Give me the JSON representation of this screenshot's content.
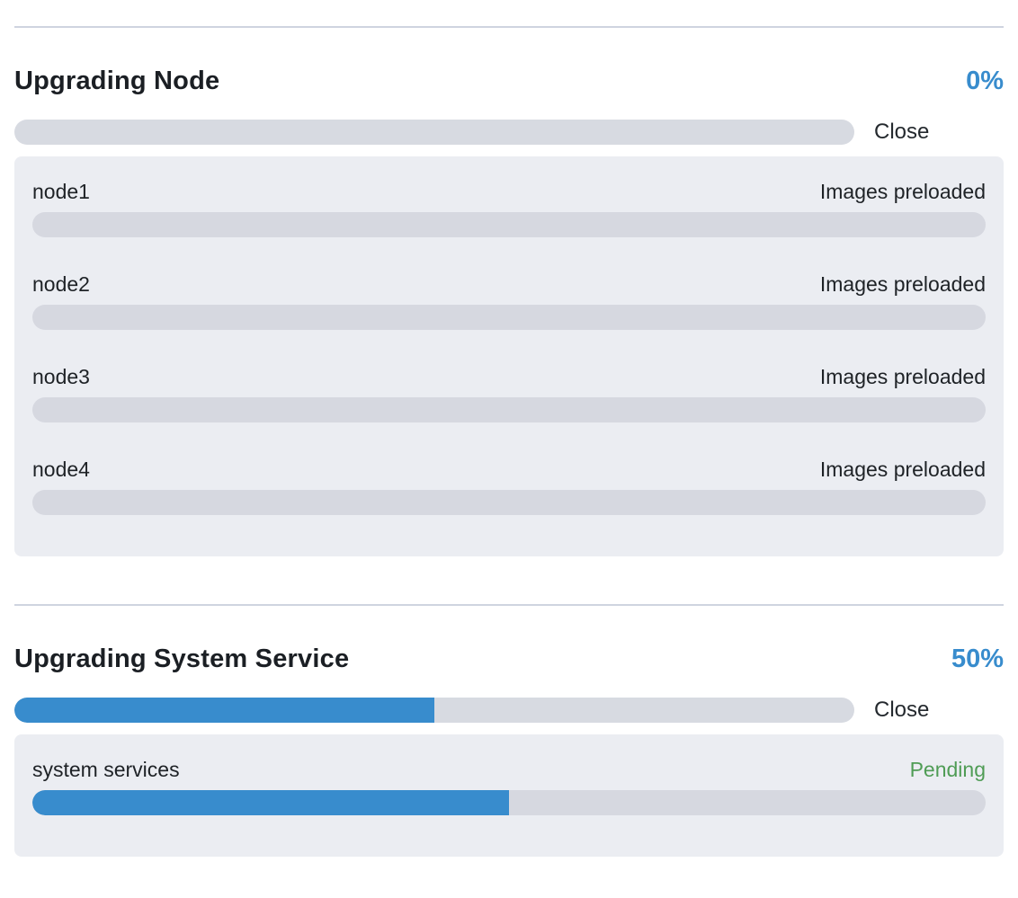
{
  "accent_colors": {
    "progress_blue": "#388ccd",
    "pending_green": "#4f9c55",
    "track_gray": "#d7dae1",
    "panel_gray": "#ebedf2"
  },
  "sections": [
    {
      "title": "Upgrading Node",
      "percent_label": "0%",
      "percent_value": 0,
      "percent_color": "#388ccd",
      "close_label": "Close",
      "rows": [
        {
          "name": "node1",
          "status": "Images preloaded",
          "progress": 0
        },
        {
          "name": "node2",
          "status": "Images preloaded",
          "progress": 0
        },
        {
          "name": "node3",
          "status": "Images preloaded",
          "progress": 0
        },
        {
          "name": "node4",
          "status": "Images preloaded",
          "progress": 0
        }
      ]
    },
    {
      "title": "Upgrading System Service",
      "percent_label": "50%",
      "percent_value": 50,
      "percent_color": "#388ccd",
      "close_label": "Close",
      "rows": [
        {
          "name": "system services",
          "status": "Pending",
          "status_color": "#4f9c55",
          "progress": 50
        }
      ]
    }
  ]
}
